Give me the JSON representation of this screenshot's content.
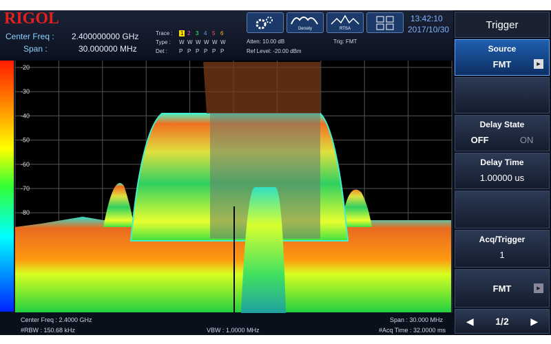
{
  "header": {
    "logo": "RIGOL",
    "center_freq_label": "Center Freq :",
    "center_freq_value": "2.400000000 GHz",
    "span_label": "Span :",
    "span_value": "30.000000 MHz",
    "trace": {
      "label": "Trace :",
      "items": [
        "1",
        "2",
        "3",
        "4",
        "5",
        "6"
      ]
    },
    "type": {
      "label": "Type :",
      "items": [
        "W",
        "W",
        "W",
        "W",
        "W",
        "W"
      ]
    },
    "det": {
      "label": "Det :",
      "items": [
        "P",
        "P",
        "P",
        "P",
        "P",
        "P"
      ]
    },
    "atten": "Atten: 10.00 dB",
    "ref_level": "Ref Level: -20.00 dBm",
    "trig": "Trig: FMT",
    "icons": [
      "Density",
      "RTSA"
    ],
    "time": "13:42:10",
    "date": "2017/10/30"
  },
  "menu": {
    "title": "Trigger",
    "source": {
      "label": "Source",
      "value": "FMT"
    },
    "delay_state": {
      "label": "Delay State",
      "off": "OFF",
      "on": "ON"
    },
    "delay_time": {
      "label": "Delay Time",
      "value": "1.00000 us"
    },
    "acq_trigger": {
      "label": "Acq/Trigger",
      "value": "1"
    },
    "fmt": "FMT",
    "page": "1/2"
  },
  "plot": {
    "y_labels": [
      "-20",
      "-30",
      "-40",
      "-50",
      "-60",
      "-70",
      "-80"
    ]
  },
  "footer": {
    "center_freq": "Center Freq : 2.4000 GHz",
    "span": "Span : 30.000 MHz",
    "rbw": "#RBW : 150.68 kHz",
    "vbw": "VBW : 1.0000 MHz",
    "acq_time": "#Acq Time : 32.0000 ms"
  }
}
